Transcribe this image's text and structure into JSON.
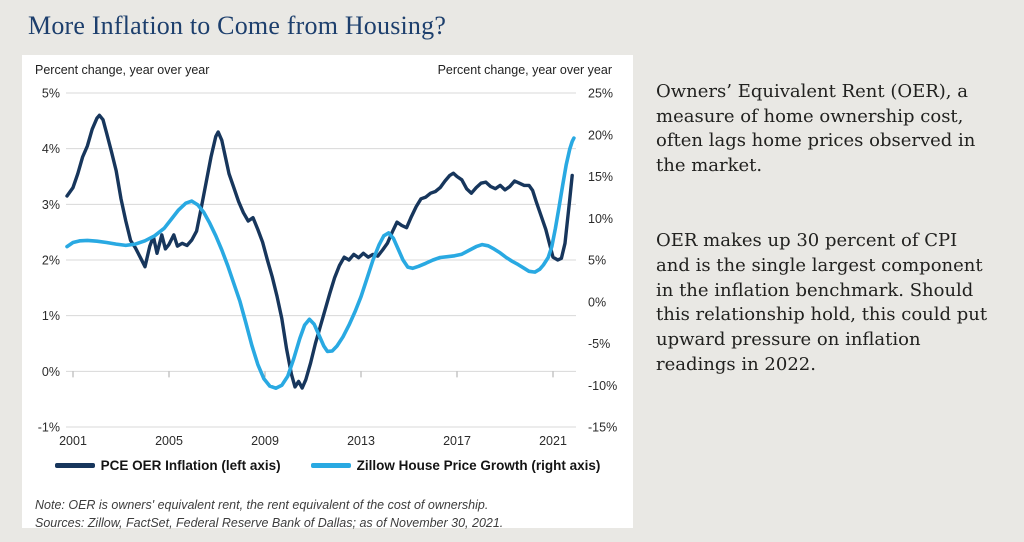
{
  "page": {
    "title": "More Inflation to Come from Housing?"
  },
  "chart": {
    "left_axis_caption": "Percent change, year over year",
    "right_axis_caption": "Percent change, year over year",
    "legend": [
      {
        "label": "PCE OER Inflation (left axis)",
        "color": "#17365c"
      },
      {
        "label": "Zillow House Price Growth (right axis)",
        "color": "#29a9e2"
      }
    ],
    "note": "Note: OER is owners' equivalent rent, the rent equivalent of the cost of ownership.",
    "sources": "Sources: Zillow, FactSet, Federal Reserve Bank of Dallas; as of November 30, 2021."
  },
  "commentary": {
    "p1": "Owners’ Equivalent Rent (OER), a\nmeasure of home ownership cost,\noften lags home prices observed in\nthe market.",
    "p2": "OER makes up 30 percent of CPI\nand is the single largest component\nin the inflation benchmark. Should\nthis relationship hold, this could put\nupward pressure on inflation\nreadings in 2022."
  },
  "chart_data": {
    "type": "line",
    "title": "More Inflation to Come from Housing?",
    "grid": true,
    "legend_position": "bottom",
    "left_axis": {
      "caption": "Percent change, year over year",
      "range": [
        -1,
        5
      ],
      "tick_values": [
        5,
        4,
        3,
        2,
        1,
        0,
        -1
      ],
      "tick_labels": [
        "5%",
        "4%",
        "3%",
        "2%",
        "1%",
        "0%",
        "-1%"
      ]
    },
    "right_axis": {
      "caption": "Percent change, year over year",
      "range": [
        -15,
        25
      ],
      "tick_values": [
        25,
        20,
        15,
        10,
        5,
        0,
        -5,
        -10,
        -15
      ],
      "tick_labels": [
        "25%",
        "20%",
        "15%",
        "10%",
        "5%",
        "0%",
        "-5%",
        "-10%",
        "-15%"
      ]
    },
    "x_axis": {
      "range": [
        2000.7,
        2022.2
      ],
      "tick_values": [
        2001,
        2005,
        2009,
        2013,
        2017,
        2021
      ],
      "tick_labels": [
        "2001",
        "2005",
        "2009",
        "2013",
        "2017",
        "2021"
      ]
    },
    "series": [
      {
        "name": "PCE OER Inflation (left axis)",
        "axis": "left",
        "color": "#17365c",
        "points": [
          [
            2000.75,
            3.15
          ],
          [
            2001.0,
            3.3
          ],
          [
            2001.2,
            3.55
          ],
          [
            2001.4,
            3.85
          ],
          [
            2001.6,
            4.05
          ],
          [
            2001.8,
            4.35
          ],
          [
            2002.0,
            4.55
          ],
          [
            2002.1,
            4.6
          ],
          [
            2002.25,
            4.52
          ],
          [
            2002.4,
            4.28
          ],
          [
            2002.6,
            3.95
          ],
          [
            2002.8,
            3.6
          ],
          [
            2003.0,
            3.1
          ],
          [
            2003.2,
            2.7
          ],
          [
            2003.4,
            2.35
          ],
          [
            2003.6,
            2.22
          ],
          [
            2003.8,
            2.05
          ],
          [
            2004.0,
            1.88
          ],
          [
            2004.2,
            2.25
          ],
          [
            2004.35,
            2.42
          ],
          [
            2004.5,
            2.12
          ],
          [
            2004.7,
            2.45
          ],
          [
            2004.85,
            2.2
          ],
          [
            2005.0,
            2.28
          ],
          [
            2005.2,
            2.45
          ],
          [
            2005.35,
            2.25
          ],
          [
            2005.55,
            2.3
          ],
          [
            2005.75,
            2.26
          ],
          [
            2005.95,
            2.36
          ],
          [
            2006.15,
            2.52
          ],
          [
            2006.35,
            2.95
          ],
          [
            2006.55,
            3.4
          ],
          [
            2006.75,
            3.85
          ],
          [
            2006.95,
            4.22
          ],
          [
            2007.05,
            4.3
          ],
          [
            2007.2,
            4.15
          ],
          [
            2007.35,
            3.85
          ],
          [
            2007.5,
            3.55
          ],
          [
            2007.7,
            3.3
          ],
          [
            2007.9,
            3.05
          ],
          [
            2008.1,
            2.85
          ],
          [
            2008.3,
            2.7
          ],
          [
            2008.5,
            2.76
          ],
          [
            2008.7,
            2.55
          ],
          [
            2008.9,
            2.32
          ],
          [
            2009.1,
            2.0
          ],
          [
            2009.3,
            1.7
          ],
          [
            2009.5,
            1.35
          ],
          [
            2009.7,
            0.95
          ],
          [
            2009.9,
            0.4
          ],
          [
            2010.1,
            -0.05
          ],
          [
            2010.25,
            -0.28
          ],
          [
            2010.4,
            -0.18
          ],
          [
            2010.55,
            -0.3
          ],
          [
            2010.7,
            -0.15
          ],
          [
            2010.9,
            0.15
          ],
          [
            2011.1,
            0.5
          ],
          [
            2011.3,
            0.8
          ],
          [
            2011.5,
            1.1
          ],
          [
            2011.7,
            1.4
          ],
          [
            2011.9,
            1.68
          ],
          [
            2012.1,
            1.9
          ],
          [
            2012.3,
            2.05
          ],
          [
            2012.5,
            2.0
          ],
          [
            2012.7,
            2.1
          ],
          [
            2012.9,
            2.04
          ],
          [
            2013.1,
            2.12
          ],
          [
            2013.3,
            2.05
          ],
          [
            2013.5,
            2.1
          ],
          [
            2013.7,
            2.07
          ],
          [
            2013.9,
            2.18
          ],
          [
            2014.1,
            2.3
          ],
          [
            2014.3,
            2.5
          ],
          [
            2014.5,
            2.68
          ],
          [
            2014.7,
            2.62
          ],
          [
            2014.9,
            2.58
          ],
          [
            2015.1,
            2.78
          ],
          [
            2015.3,
            2.96
          ],
          [
            2015.5,
            3.1
          ],
          [
            2015.7,
            3.13
          ],
          [
            2015.9,
            3.2
          ],
          [
            2016.1,
            3.23
          ],
          [
            2016.3,
            3.3
          ],
          [
            2016.5,
            3.42
          ],
          [
            2016.7,
            3.52
          ],
          [
            2016.85,
            3.56
          ],
          [
            2017.0,
            3.5
          ],
          [
            2017.2,
            3.44
          ],
          [
            2017.4,
            3.28
          ],
          [
            2017.6,
            3.2
          ],
          [
            2017.8,
            3.3
          ],
          [
            2018.0,
            3.38
          ],
          [
            2018.2,
            3.4
          ],
          [
            2018.4,
            3.32
          ],
          [
            2018.6,
            3.28
          ],
          [
            2018.8,
            3.34
          ],
          [
            2019.0,
            3.26
          ],
          [
            2019.2,
            3.32
          ],
          [
            2019.4,
            3.42
          ],
          [
            2019.6,
            3.38
          ],
          [
            2019.8,
            3.34
          ],
          [
            2020.0,
            3.34
          ],
          [
            2020.15,
            3.25
          ],
          [
            2020.3,
            3.05
          ],
          [
            2020.5,
            2.8
          ],
          [
            2020.7,
            2.55
          ],
          [
            2020.85,
            2.3
          ],
          [
            2021.0,
            2.05
          ],
          [
            2021.2,
            2.0
          ],
          [
            2021.35,
            2.03
          ],
          [
            2021.5,
            2.3
          ],
          [
            2021.6,
            2.7
          ],
          [
            2021.7,
            3.1
          ],
          [
            2021.8,
            3.52
          ]
        ]
      },
      {
        "name": "Zillow House Price Growth (right axis)",
        "axis": "right",
        "color": "#29a9e2",
        "points": [
          [
            2000.75,
            6.6
          ],
          [
            2001.0,
            7.1
          ],
          [
            2001.3,
            7.3
          ],
          [
            2001.6,
            7.35
          ],
          [
            2002.0,
            7.25
          ],
          [
            2002.4,
            7.1
          ],
          [
            2002.8,
            6.9
          ],
          [
            2003.2,
            6.75
          ],
          [
            2003.6,
            6.9
          ],
          [
            2004.0,
            7.3
          ],
          [
            2004.4,
            7.9
          ],
          [
            2004.8,
            8.8
          ],
          [
            2005.1,
            9.9
          ],
          [
            2005.4,
            11.0
          ],
          [
            2005.7,
            11.8
          ],
          [
            2005.95,
            12.05
          ],
          [
            2006.2,
            11.6
          ],
          [
            2006.45,
            10.7
          ],
          [
            2006.7,
            9.4
          ],
          [
            2006.95,
            7.9
          ],
          [
            2007.2,
            6.2
          ],
          [
            2007.45,
            4.3
          ],
          [
            2007.7,
            2.2
          ],
          [
            2007.95,
            0.1
          ],
          [
            2008.2,
            -2.5
          ],
          [
            2008.45,
            -5.2
          ],
          [
            2008.7,
            -7.5
          ],
          [
            2008.95,
            -9.2
          ],
          [
            2009.2,
            -10.1
          ],
          [
            2009.45,
            -10.35
          ],
          [
            2009.7,
            -10.0
          ],
          [
            2009.95,
            -8.9
          ],
          [
            2010.2,
            -6.8
          ],
          [
            2010.45,
            -4.4
          ],
          [
            2010.65,
            -2.8
          ],
          [
            2010.85,
            -2.1
          ],
          [
            2011.05,
            -2.7
          ],
          [
            2011.25,
            -4.0
          ],
          [
            2011.45,
            -5.3
          ],
          [
            2011.6,
            -5.95
          ],
          [
            2011.8,
            -5.9
          ],
          [
            2012.0,
            -5.3
          ],
          [
            2012.25,
            -4.2
          ],
          [
            2012.5,
            -2.8
          ],
          [
            2012.75,
            -1.2
          ],
          [
            2013.0,
            0.6
          ],
          [
            2013.25,
            2.8
          ],
          [
            2013.5,
            5.0
          ],
          [
            2013.75,
            6.8
          ],
          [
            2013.95,
            7.9
          ],
          [
            2014.15,
            8.25
          ],
          [
            2014.35,
            7.6
          ],
          [
            2014.55,
            6.3
          ],
          [
            2014.75,
            5.0
          ],
          [
            2014.95,
            4.15
          ],
          [
            2015.15,
            4.0
          ],
          [
            2015.4,
            4.25
          ],
          [
            2015.7,
            4.6
          ],
          [
            2016.0,
            5.0
          ],
          [
            2016.3,
            5.3
          ],
          [
            2016.6,
            5.4
          ],
          [
            2016.9,
            5.5
          ],
          [
            2017.2,
            5.7
          ],
          [
            2017.5,
            6.15
          ],
          [
            2017.8,
            6.6
          ],
          [
            2018.05,
            6.85
          ],
          [
            2018.3,
            6.7
          ],
          [
            2018.55,
            6.3
          ],
          [
            2018.8,
            5.85
          ],
          [
            2019.05,
            5.3
          ],
          [
            2019.3,
            4.85
          ],
          [
            2019.55,
            4.45
          ],
          [
            2019.8,
            4.0
          ],
          [
            2020.0,
            3.65
          ],
          [
            2020.25,
            3.55
          ],
          [
            2020.45,
            3.9
          ],
          [
            2020.6,
            4.4
          ],
          [
            2020.8,
            5.3
          ],
          [
            2020.95,
            6.6
          ],
          [
            2021.1,
            8.8
          ],
          [
            2021.25,
            11.3
          ],
          [
            2021.4,
            13.9
          ],
          [
            2021.55,
            16.4
          ],
          [
            2021.7,
            18.3
          ],
          [
            2021.8,
            19.2
          ],
          [
            2021.87,
            19.6
          ]
        ]
      }
    ]
  }
}
